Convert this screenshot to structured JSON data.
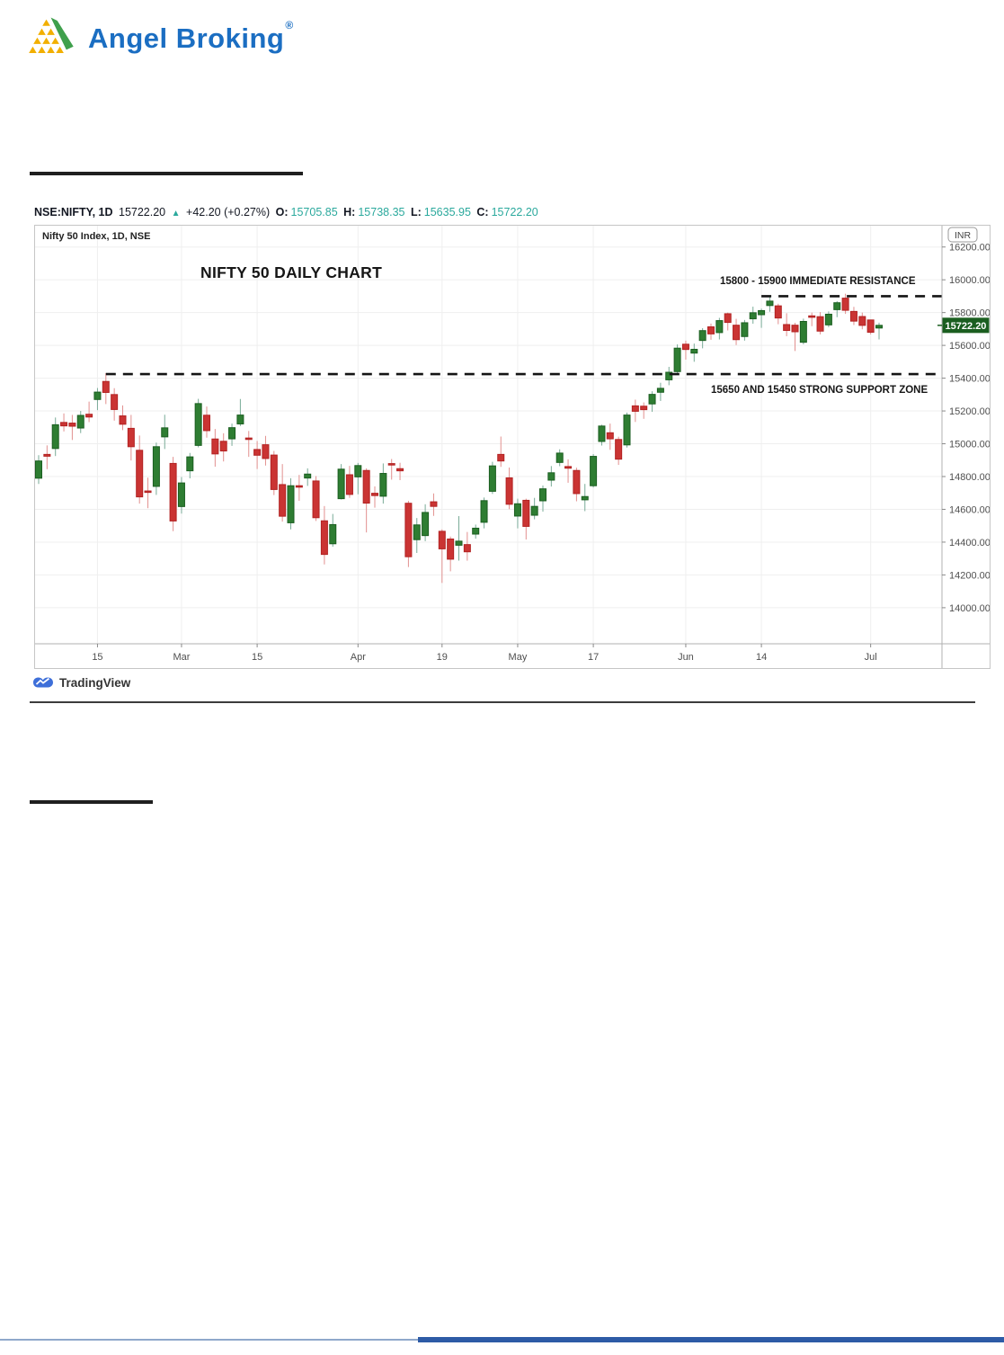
{
  "logo": {
    "brand": "Angel Broking",
    "registered": "®"
  },
  "symbol_header": {
    "symbol": "NSE:NIFTY, 1D",
    "last": "15722.20",
    "arrow": "▲",
    "change": "+42.20 (+0.27%)",
    "o_label": "O:",
    "o": "15705.85",
    "h_label": "H:",
    "h": "15738.35",
    "l_label": "L:",
    "l": "15635.95",
    "c_label": "C:",
    "c": "15722.20"
  },
  "chart": {
    "legend": "Nifty 50 Index, 1D, NSE",
    "title": "NIFTY 50 DAILY CHART",
    "currency_badge": "INR",
    "price_label": "15722.20"
  },
  "attribution": {
    "name": "TradingView"
  },
  "colors": {
    "brand_blue": "#1b6ec2",
    "teal_value": "#2ba99d",
    "up_body": "#2e7d32",
    "up_border": "#1b5e20",
    "up_wick": "#79ab97",
    "down_body": "#ca3433",
    "down_border": "#b22222",
    "down_wick": "#e2908f",
    "price_label_bg": "#1b5e20",
    "grid": "#efefef",
    "axis_text": "#4f4f4f",
    "axis_line": "#b0b0b0",
    "annotation_line": "#141414"
  },
  "chart_data": {
    "type": "candlestick",
    "symbol": "NSE:NIFTY",
    "interval": "1D",
    "title": "NIFTY 50 DAILY CHART",
    "currency": "INR",
    "last_price": 15722.2,
    "y_range": [
      13780,
      16330
    ],
    "y_ticks": [
      "16200.00",
      "16000.00",
      "15800.00",
      "15600.00",
      "15400.00",
      "15200.00",
      "15000.00",
      "14800.00",
      "14600.00",
      "14400.00",
      "14200.00",
      "14000.00"
    ],
    "y_tick_values": [
      16200,
      16000,
      15800,
      15600,
      15400,
      15200,
      15000,
      14800,
      14600,
      14400,
      14200,
      14000
    ],
    "x_ticks": [
      {
        "label": "15",
        "index": 7
      },
      {
        "label": "Mar",
        "index": 17
      },
      {
        "label": "15",
        "index": 26
      },
      {
        "label": "Apr",
        "index": 38
      },
      {
        "label": "19",
        "index": 48
      },
      {
        "label": "May",
        "index": 57
      },
      {
        "label": "17",
        "index": 66
      },
      {
        "label": "Jun",
        "index": 77
      },
      {
        "label": "14",
        "index": 86
      },
      {
        "label": "Jul",
        "index": 99
      }
    ],
    "annotations": {
      "resistance": {
        "text": "15800 - 15900 IMMEDIATE RESISTANCE",
        "price": 15900,
        "from_index": 86
      },
      "support": {
        "text": "15650 AND 15450 STRONG SUPPORT ZONE",
        "price": 15425,
        "from_index": 8
      }
    },
    "legend_position": "top-left",
    "grid": true,
    "candles": [
      [
        "Feb 4",
        14790,
        14930,
        14755,
        14895
      ],
      [
        "Feb 5",
        14935,
        14990,
        14845,
        14924
      ],
      [
        "Feb 8",
        14971,
        15160,
        14925,
        15116
      ],
      [
        "Feb 9",
        15130,
        15185,
        15075,
        15109
      ],
      [
        "Feb 10",
        15126,
        15176,
        15023,
        15107
      ],
      [
        "Feb 11",
        15096,
        15200,
        15065,
        15173
      ],
      [
        "Feb 12",
        15180,
        15257,
        15132,
        15163
      ],
      [
        "Feb 15",
        15270,
        15340,
        15205,
        15315
      ],
      [
        "Feb 16",
        15380,
        15431,
        15242,
        15313
      ],
      [
        "Feb 17",
        15300,
        15339,
        15141,
        15209
      ],
      [
        "Feb 18",
        15170,
        15234,
        15083,
        15119
      ],
      [
        "Feb 19",
        15094,
        15176,
        14898,
        14982
      ],
      [
        "Feb 22",
        14960,
        15050,
        14635,
        14676
      ],
      [
        "Feb 23",
        14712,
        14793,
        14607,
        14708
      ],
      [
        "Feb 24",
        14740,
        15007,
        14688,
        14982
      ],
      [
        "Feb 25",
        15042,
        15177,
        14968,
        15097
      ],
      [
        "Feb 26",
        14880,
        14920,
        14467,
        14529
      ],
      [
        "Mar 1",
        14617,
        14797,
        14574,
        14761
      ],
      [
        "Mar 2",
        14835,
        14944,
        14789,
        14920
      ],
      [
        "Mar 3",
        14990,
        15274,
        14978,
        15245
      ],
      [
        "Mar 4",
        15174,
        15227,
        15037,
        15080
      ],
      [
        "Mar 5",
        15029,
        15090,
        14860,
        14938
      ],
      [
        "Mar 8",
        15015,
        15064,
        14892,
        14956
      ],
      [
        "Mar 9",
        15030,
        15123,
        14987,
        15098
      ],
      [
        "Mar 10",
        15121,
        15273,
        15108,
        15175
      ],
      [
        "Mar 12",
        15035,
        15078,
        14920,
        15031
      ],
      [
        "Mar 15",
        14965,
        15017,
        14846,
        14930
      ],
      [
        "Mar 16",
        14994,
        15048,
        14867,
        14910
      ],
      [
        "Mar 17",
        14931,
        14956,
        14687,
        14721
      ],
      [
        "Mar 18",
        14751,
        14876,
        14525,
        14558
      ],
      [
        "Mar 19",
        14518,
        14790,
        14478,
        14744
      ],
      [
        "Mar 22",
        14744,
        14810,
        14652,
        14736
      ],
      [
        "Mar 23",
        14791,
        14850,
        14743,
        14815
      ],
      [
        "Mar 24",
        14773,
        14803,
        14529,
        14549
      ],
      [
        "Mar 25",
        14530,
        14620,
        14264,
        14325
      ],
      [
        "Mar 26",
        14390,
        14572,
        14372,
        14507
      ],
      [
        "Mar 30",
        14665,
        14876,
        14660,
        14845
      ],
      [
        "Mar 31",
        14811,
        14865,
        14670,
        14691
      ],
      [
        "Apr 1",
        14798,
        14883,
        14692,
        14867
      ],
      [
        "Apr 5",
        14837,
        14850,
        14459,
        14638
      ],
      [
        "Apr 6",
        14698,
        14740,
        14610,
        14684
      ],
      [
        "Apr 7",
        14680,
        14880,
        14635,
        14819
      ],
      [
        "Apr 8",
        14879,
        14907,
        14781,
        14874
      ],
      [
        "Apr 9",
        14848,
        14884,
        14778,
        14835
      ],
      [
        "Apr 12",
        14637,
        14652,
        14248,
        14311
      ],
      [
        "Apr 13",
        14415,
        14547,
        14334,
        14505
      ],
      [
        "Apr 15",
        14440,
        14631,
        14406,
        14581
      ],
      [
        "Apr 16",
        14646,
        14697,
        14560,
        14618
      ],
      [
        "Apr 19",
        14466,
        14478,
        14151,
        14359
      ],
      [
        "Apr 20",
        14419,
        14434,
        14222,
        14296
      ],
      [
        "Apr 22",
        14381,
        14559,
        14287,
        14406
      ],
      [
        "Apr 23",
        14385,
        14462,
        14287,
        14341
      ],
      [
        "Apr 26",
        14449,
        14507,
        14421,
        14485
      ],
      [
        "Apr 27",
        14521,
        14672,
        14484,
        14653
      ],
      [
        "Apr 28",
        14710,
        14890,
        14694,
        14865
      ],
      [
        "Apr 29",
        14935,
        15044,
        14859,
        14895
      ],
      [
        "Apr 30",
        14792,
        14855,
        14601,
        14631
      ],
      [
        "May 3",
        14559,
        14665,
        14484,
        14634
      ],
      [
        "May 4",
        14655,
        14665,
        14416,
        14496
      ],
      [
        "May 5",
        14564,
        14670,
        14539,
        14618
      ],
      [
        "May 6",
        14652,
        14745,
        14586,
        14725
      ],
      [
        "May 7",
        14778,
        14864,
        14739,
        14823
      ],
      [
        "May 10",
        14886,
        14966,
        14863,
        14943
      ],
      [
        "May 11",
        14861,
        14905,
        14762,
        14851
      ],
      [
        "May 12",
        14837,
        14854,
        14649,
        14696
      ],
      [
        "May 14",
        14658,
        14755,
        14589,
        14678
      ],
      [
        "May 17",
        14744,
        14937,
        14733,
        14923
      ],
      [
        "May 18",
        15014,
        15116,
        14989,
        15108
      ],
      [
        "May 19",
        15067,
        15123,
        14963,
        15030
      ],
      [
        "May 20",
        15026,
        15043,
        14871,
        14906
      ],
      [
        "May 21",
        14993,
        15190,
        14977,
        15175
      ],
      [
        "May 24",
        15231,
        15269,
        15133,
        15198
      ],
      [
        "May 25",
        15229,
        15252,
        15152,
        15208
      ],
      [
        "May 26",
        15243,
        15320,
        15195,
        15301
      ],
      [
        "May 27",
        15314,
        15372,
        15261,
        15338
      ],
      [
        "May 28",
        15390,
        15469,
        15357,
        15436
      ],
      [
        "May 31",
        15440,
        15606,
        15422,
        15583
      ],
      [
        "Jun 1",
        15607,
        15629,
        15513,
        15575
      ],
      [
        "Jun 2",
        15553,
        15611,
        15500,
        15576
      ],
      [
        "Jun 3",
        15630,
        15705,
        15582,
        15690
      ],
      [
        "Jun 4",
        15713,
        15733,
        15634,
        15670
      ],
      [
        "Jun 7",
        15678,
        15768,
        15636,
        15751
      ],
      [
        "Jun 8",
        15793,
        15800,
        15691,
        15740
      ],
      [
        "Jun 9",
        15723,
        15762,
        15602,
        15635
      ],
      [
        "Jun 10",
        15654,
        15755,
        15629,
        15738
      ],
      [
        "Jun 11",
        15762,
        15836,
        15732,
        15799
      ],
      [
        "Jun 14",
        15787,
        15824,
        15707,
        15812
      ],
      [
        "Jun 15",
        15843,
        15902,
        15805,
        15870
      ],
      [
        "Jun 16",
        15841,
        15854,
        15729,
        15767
      ],
      [
        "Jun 17",
        15727,
        15796,
        15656,
        15691
      ],
      [
        "Jun 18",
        15723,
        15738,
        15566,
        15683
      ],
      [
        "Jun 21",
        15619,
        15763,
        15607,
        15746
      ],
      [
        "Jun 22",
        15780,
        15800,
        15717,
        15773
      ],
      [
        "Jun 23",
        15775,
        15803,
        15667,
        15687
      ],
      [
        "Jun 24",
        15725,
        15807,
        15711,
        15790
      ],
      [
        "Jun 25",
        15818,
        15870,
        15772,
        15860
      ],
      [
        "Jun 28",
        15888,
        15915,
        15792,
        15814
      ],
      [
        "Jun 29",
        15807,
        15835,
        15724,
        15748
      ],
      [
        "Jun 30",
        15776,
        15800,
        15698,
        15722
      ],
      [
        "Jul 1",
        15755,
        15755,
        15667,
        15680
      ],
      [
        "Jul 2",
        15705.85,
        15738.35,
        15635.95,
        15722.2
      ]
    ]
  }
}
